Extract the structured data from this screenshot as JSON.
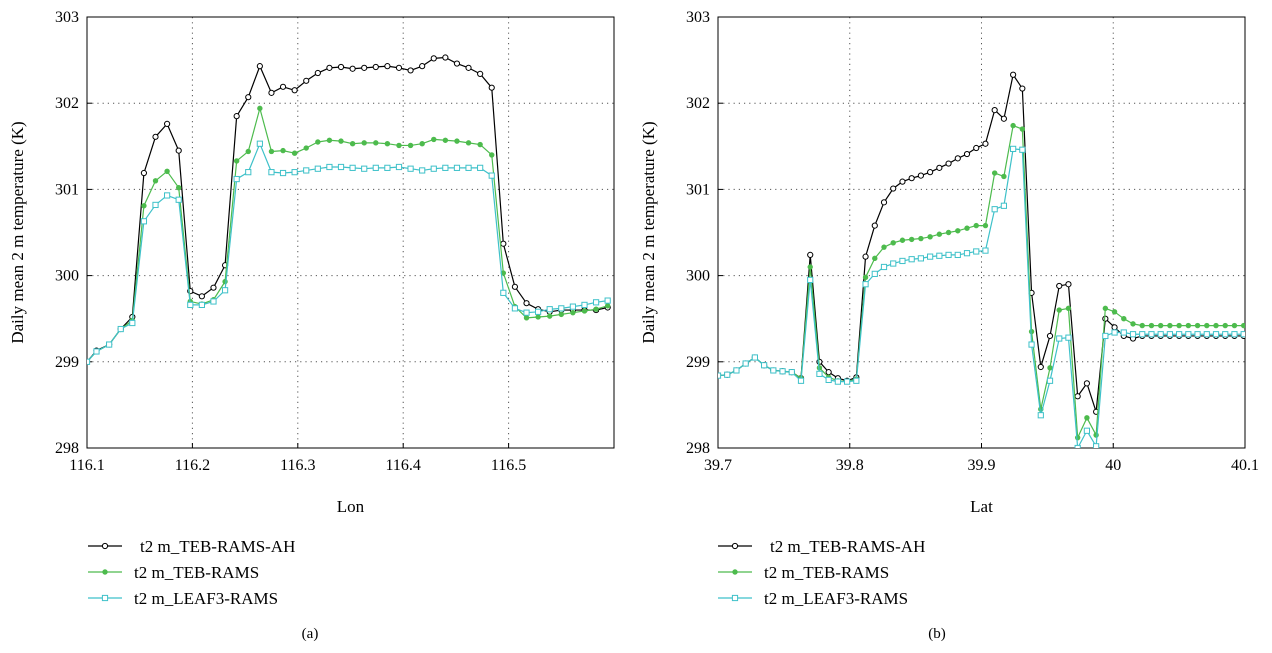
{
  "chart_data": [
    {
      "type": "line",
      "panel_label": "(a)",
      "xlabel": "Lon",
      "ylabel": "Daily mean 2 m temperature (K)",
      "xlim": [
        116.1,
        116.6
      ],
      "ylim": [
        298,
        303
      ],
      "xticks": [
        "116.1",
        "116.2",
        "116.3",
        "116.4",
        "116.5"
      ],
      "yticks": [
        "298",
        "299",
        "300",
        "301",
        "302",
        "303"
      ],
      "grid": "dotted",
      "legend_position": "bottom",
      "series": [
        {
          "name": "t2 m_TEB-RAMS-AH",
          "color": "#000000",
          "marker": "circle",
          "x": [
            116.1,
            116.109,
            116.121,
            116.132,
            116.143,
            116.154,
            116.165,
            116.176,
            116.187,
            116.198,
            116.209,
            116.22,
            116.231,
            116.242,
            116.253,
            116.264,
            116.275,
            116.286,
            116.297,
            116.308,
            116.319,
            116.33,
            116.341,
            116.352,
            116.363,
            116.374,
            116.385,
            116.396,
            116.407,
            116.418,
            116.429,
            116.44,
            116.451,
            116.462,
            116.473,
            116.484,
            116.495,
            116.506,
            116.517,
            116.528,
            116.539,
            116.55,
            116.561,
            116.572,
            116.583,
            116.594
          ],
          "y": [
            299.0,
            299.13,
            299.2,
            299.38,
            299.52,
            301.19,
            301.61,
            301.76,
            301.45,
            299.82,
            299.76,
            299.86,
            300.12,
            301.85,
            302.07,
            302.43,
            302.12,
            302.19,
            302.15,
            302.26,
            302.35,
            302.41,
            302.42,
            302.4,
            302.41,
            302.42,
            302.43,
            302.41,
            302.38,
            302.43,
            302.52,
            302.53,
            302.46,
            302.41,
            302.34,
            302.18,
            300.37,
            299.87,
            299.68,
            299.61,
            299.58,
            299.6,
            299.6,
            299.6,
            299.6,
            299.63
          ]
        },
        {
          "name": "t2 m_TEB-RAMS",
          "color": "#4dbb4d",
          "marker": "dot",
          "x": [
            116.1,
            116.109,
            116.121,
            116.132,
            116.143,
            116.154,
            116.165,
            116.176,
            116.187,
            116.198,
            116.209,
            116.22,
            116.231,
            116.242,
            116.253,
            116.264,
            116.275,
            116.286,
            116.297,
            116.308,
            116.319,
            116.33,
            116.341,
            116.352,
            116.363,
            116.374,
            116.385,
            116.396,
            116.407,
            116.418,
            116.429,
            116.44,
            116.451,
            116.462,
            116.473,
            116.484,
            116.495,
            116.506,
            116.517,
            116.528,
            116.539,
            116.55,
            116.561,
            116.572,
            116.583,
            116.594
          ],
          "y": [
            299.0,
            299.12,
            299.2,
            299.38,
            299.48,
            300.81,
            301.1,
            301.21,
            301.02,
            299.7,
            299.67,
            299.72,
            299.93,
            301.33,
            301.44,
            301.94,
            301.44,
            301.45,
            301.42,
            301.48,
            301.55,
            301.57,
            301.56,
            301.53,
            301.54,
            301.54,
            301.53,
            301.51,
            301.51,
            301.53,
            301.58,
            301.57,
            301.56,
            301.54,
            301.52,
            301.4,
            300.03,
            299.64,
            299.51,
            299.52,
            299.53,
            299.55,
            299.57,
            299.59,
            299.61,
            299.65
          ]
        },
        {
          "name": "t2 m_LEAF3-RAMS",
          "color": "#3ec1c9",
          "marker": "square",
          "x": [
            116.1,
            116.109,
            116.121,
            116.132,
            116.143,
            116.154,
            116.165,
            116.176,
            116.187,
            116.198,
            116.209,
            116.22,
            116.231,
            116.242,
            116.253,
            116.264,
            116.275,
            116.286,
            116.297,
            116.308,
            116.319,
            116.33,
            116.341,
            116.352,
            116.363,
            116.374,
            116.385,
            116.396,
            116.407,
            116.418,
            116.429,
            116.44,
            116.451,
            116.462,
            116.473,
            116.484,
            116.495,
            116.506,
            116.517,
            116.528,
            116.539,
            116.55,
            116.561,
            116.572,
            116.583,
            116.594
          ],
          "y": [
            299.0,
            299.12,
            299.2,
            299.38,
            299.45,
            300.63,
            300.82,
            300.93,
            300.88,
            299.66,
            299.66,
            299.7,
            299.83,
            301.12,
            301.2,
            301.53,
            301.2,
            301.19,
            301.2,
            301.22,
            301.24,
            301.26,
            301.26,
            301.25,
            301.24,
            301.25,
            301.25,
            301.26,
            301.24,
            301.22,
            301.24,
            301.25,
            301.25,
            301.25,
            301.25,
            301.16,
            299.8,
            299.62,
            299.57,
            299.58,
            299.61,
            299.62,
            299.64,
            299.66,
            299.69,
            299.71
          ]
        }
      ]
    },
    {
      "type": "line",
      "panel_label": "(b)",
      "xlabel": "Lat",
      "ylabel": "Daily mean 2 m temperature (K)",
      "xlim": [
        39.7,
        40.1
      ],
      "ylim": [
        298,
        303
      ],
      "xticks": [
        "39.7",
        "39.8",
        "39.9",
        "40",
        "40.1"
      ],
      "yticks": [
        "298",
        "299",
        "300",
        "301",
        "302",
        "303"
      ],
      "grid": "dotted",
      "legend_position": "bottom",
      "series": [
        {
          "name": "t2 m_TEB-RAMS-AH",
          "color": "#000000",
          "marker": "circle",
          "x": [
            39.7,
            39.707,
            39.714,
            39.721,
            39.728,
            39.735,
            39.742,
            39.749,
            39.756,
            39.763,
            39.77,
            39.777,
            39.784,
            39.791,
            39.798,
            39.805,
            39.812,
            39.819,
            39.826,
            39.833,
            39.84,
            39.847,
            39.854,
            39.861,
            39.868,
            39.875,
            39.882,
            39.889,
            39.896,
            39.903,
            39.91,
            39.917,
            39.924,
            39.931,
            39.938,
            39.945,
            39.952,
            39.959,
            39.966,
            39.973,
            39.98,
            39.987,
            39.994,
            40.001,
            40.008,
            40.015,
            40.022,
            40.029,
            40.036,
            40.043,
            40.05,
            40.057,
            40.064,
            40.071,
            40.078,
            40.085,
            40.092,
            40.099
          ],
          "y": [
            298.84,
            298.85,
            298.9,
            298.98,
            299.05,
            298.96,
            298.9,
            298.89,
            298.88,
            298.81,
            300.24,
            299.0,
            298.88,
            298.81,
            298.78,
            298.82,
            300.22,
            300.58,
            300.85,
            301.01,
            301.09,
            301.13,
            301.16,
            301.2,
            301.25,
            301.3,
            301.36,
            301.41,
            301.48,
            301.53,
            301.92,
            301.82,
            302.33,
            302.17,
            299.8,
            298.94,
            299.3,
            299.88,
            299.9,
            298.6,
            298.75,
            298.42,
            299.5,
            299.4,
            299.3,
            299.27,
            299.3,
            299.3,
            299.3,
            299.3,
            299.3,
            299.3,
            299.3,
            299.3,
            299.3,
            299.3,
            299.3,
            299.3
          ]
        },
        {
          "name": "t2 m_TEB-RAMS",
          "color": "#4dbb4d",
          "marker": "dot",
          "x": [
            39.7,
            39.707,
            39.714,
            39.721,
            39.728,
            39.735,
            39.742,
            39.749,
            39.756,
            39.763,
            39.77,
            39.777,
            39.784,
            39.791,
            39.798,
            39.805,
            39.812,
            39.819,
            39.826,
            39.833,
            39.84,
            39.847,
            39.854,
            39.861,
            39.868,
            39.875,
            39.882,
            39.889,
            39.896,
            39.903,
            39.91,
            39.917,
            39.924,
            39.931,
            39.938,
            39.945,
            39.952,
            39.959,
            39.966,
            39.973,
            39.98,
            39.987,
            39.994,
            40.001,
            40.008,
            40.015,
            40.022,
            40.029,
            40.036,
            40.043,
            40.05,
            40.057,
            40.064,
            40.071,
            40.078,
            40.085,
            40.092,
            40.099
          ],
          "y": [
            298.84,
            298.85,
            298.9,
            298.98,
            299.05,
            298.96,
            298.9,
            298.89,
            298.88,
            298.81,
            300.1,
            298.93,
            298.82,
            298.78,
            298.77,
            298.8,
            299.98,
            300.2,
            300.33,
            300.38,
            300.41,
            300.42,
            300.43,
            300.45,
            300.48,
            300.5,
            300.52,
            300.55,
            300.58,
            300.58,
            301.19,
            301.15,
            301.74,
            301.7,
            299.35,
            298.45,
            298.93,
            299.6,
            299.62,
            298.12,
            298.35,
            298.15,
            299.62,
            299.58,
            299.5,
            299.44,
            299.42,
            299.42,
            299.42,
            299.42,
            299.42,
            299.42,
            299.42,
            299.42,
            299.42,
            299.42,
            299.42,
            299.42
          ]
        },
        {
          "name": "t2 m_LEAF3-RAMS",
          "color": "#3ec1c9",
          "marker": "square",
          "x": [
            39.7,
            39.707,
            39.714,
            39.721,
            39.728,
            39.735,
            39.742,
            39.749,
            39.756,
            39.763,
            39.77,
            39.777,
            39.784,
            39.791,
            39.798,
            39.805,
            39.812,
            39.819,
            39.826,
            39.833,
            39.84,
            39.847,
            39.854,
            39.861,
            39.868,
            39.875,
            39.882,
            39.889,
            39.896,
            39.903,
            39.91,
            39.917,
            39.924,
            39.931,
            39.938,
            39.945,
            39.952,
            39.959,
            39.966,
            39.973,
            39.98,
            39.987,
            39.994,
            40.001,
            40.008,
            40.015,
            40.022,
            40.029,
            40.036,
            40.043,
            40.05,
            40.057,
            40.064,
            40.071,
            40.078,
            40.085,
            40.092,
            40.099
          ],
          "y": [
            298.84,
            298.85,
            298.9,
            298.98,
            299.05,
            298.96,
            298.9,
            298.89,
            298.88,
            298.78,
            299.95,
            298.86,
            298.79,
            298.77,
            298.77,
            298.78,
            299.9,
            300.02,
            300.1,
            300.14,
            300.17,
            300.19,
            300.2,
            300.22,
            300.23,
            300.24,
            300.24,
            300.26,
            300.28,
            300.29,
            300.77,
            300.81,
            301.47,
            301.46,
            299.2,
            298.38,
            298.78,
            299.27,
            299.28,
            298.0,
            298.2,
            298.02,
            299.3,
            299.34,
            299.34,
            299.32,
            299.32,
            299.32,
            299.32,
            299.32,
            299.32,
            299.32,
            299.32,
            299.32,
            299.32,
            299.32,
            299.32,
            299.32
          ]
        }
      ]
    }
  ]
}
